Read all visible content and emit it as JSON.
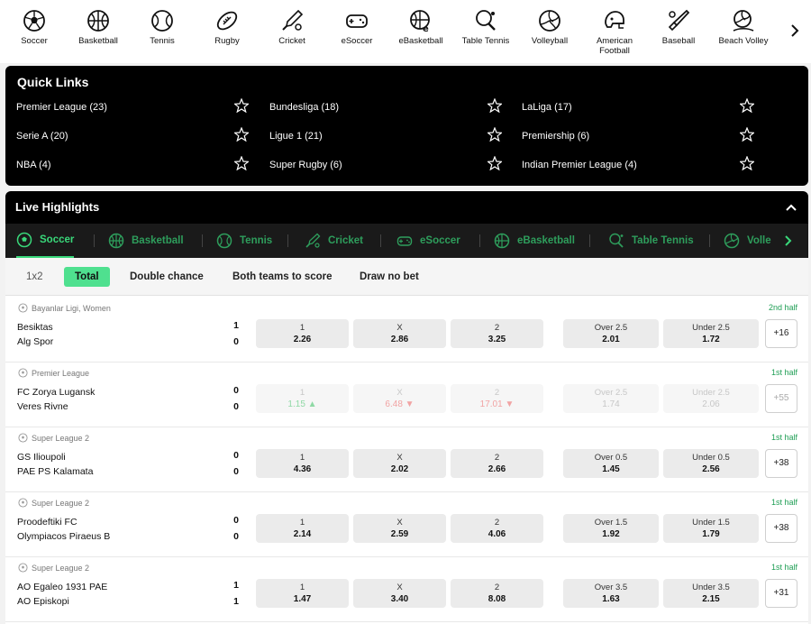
{
  "sports_bar": {
    "items": [
      {
        "label": "Soccer",
        "icon": "soccer-ball-icon"
      },
      {
        "label": "Basketball",
        "icon": "basketball-icon"
      },
      {
        "label": "Tennis",
        "icon": "tennis-ball-icon"
      },
      {
        "label": "Rugby",
        "icon": "rugby-ball-icon"
      },
      {
        "label": "Cricket",
        "icon": "cricket-bat-icon"
      },
      {
        "label": "eSoccer",
        "icon": "gamepad-icon"
      },
      {
        "label": "eBasketball",
        "icon": "ebasketball-icon"
      },
      {
        "label": "Table Tennis",
        "icon": "table-tennis-paddle-icon"
      },
      {
        "label": "Volleyball",
        "icon": "volleyball-icon"
      },
      {
        "label": "American Football",
        "icon": "football-helmet-icon"
      },
      {
        "label": "Baseball",
        "icon": "baseball-bat-icon"
      },
      {
        "label": "Beach Volley",
        "icon": "beach-volleyball-icon"
      }
    ],
    "next_icon": "chevron-right-icon"
  },
  "quick_links": {
    "title": "Quick Links",
    "items": [
      {
        "label": "Premier League (23)"
      },
      {
        "label": "Bundesliga (18)"
      },
      {
        "label": "LaLiga (17)"
      },
      {
        "label": "Serie A (20)"
      },
      {
        "label": "Ligue 1 (21)"
      },
      {
        "label": "Premiership (6)"
      },
      {
        "label": "NBA (4)"
      },
      {
        "label": "Super Rugby (6)"
      },
      {
        "label": "Indian Premier League (4)"
      }
    ]
  },
  "live": {
    "title": "Live Highlights",
    "sport_tabs": [
      "Soccer",
      "Basketball",
      "Tennis",
      "Cricket",
      "eSoccer",
      "eBasketball",
      "Table Tennis",
      "Volle"
    ],
    "market_tabs": [
      "1x2",
      "Total",
      "Double chance",
      "Both teams to score",
      "Draw no bet"
    ],
    "selected_market": "Total",
    "events": [
      {
        "league": "Bayanlar Ligi, Women",
        "period": "2nd half",
        "home": "Besiktas",
        "away": "Alg Spor",
        "home_score": "1",
        "away_score": "0",
        "odds": [
          {
            "label": "1",
            "value": "2.26"
          },
          {
            "label": "X",
            "value": "2.86"
          },
          {
            "label": "2",
            "value": "3.25"
          }
        ],
        "totals": [
          {
            "label": "Over 2.5",
            "value": "2.01"
          },
          {
            "label": "Under 2.5",
            "value": "1.72"
          }
        ],
        "more": "+16",
        "suspended": false
      },
      {
        "league": "Premier League",
        "period": "1st half",
        "home": "FC Zorya Lugansk",
        "away": "Veres Rivne",
        "home_score": "0",
        "away_score": "0",
        "odds": [
          {
            "label": "1",
            "value": "1.15",
            "trend": "up"
          },
          {
            "label": "X",
            "value": "6.48",
            "trend": "down"
          },
          {
            "label": "2",
            "value": "17.01",
            "trend": "down"
          }
        ],
        "totals": [
          {
            "label": "Over 2.5",
            "value": "1.74"
          },
          {
            "label": "Under 2.5",
            "value": "2.06"
          }
        ],
        "more": "+55",
        "suspended": true
      },
      {
        "league": "Super League 2",
        "period": "1st half",
        "home": "GS Ilioupoli",
        "away": "PAE PS Kalamata",
        "home_score": "0",
        "away_score": "0",
        "odds": [
          {
            "label": "1",
            "value": "4.36"
          },
          {
            "label": "X",
            "value": "2.02"
          },
          {
            "label": "2",
            "value": "2.66"
          }
        ],
        "totals": [
          {
            "label": "Over 0.5",
            "value": "1.45"
          },
          {
            "label": "Under 0.5",
            "value": "2.56"
          }
        ],
        "more": "+38",
        "suspended": false
      },
      {
        "league": "Super League 2",
        "period": "1st half",
        "home": "Proodeftiki FC",
        "away": "Olympiacos Piraeus B",
        "home_score": "0",
        "away_score": "0",
        "odds": [
          {
            "label": "1",
            "value": "2.14"
          },
          {
            "label": "X",
            "value": "2.59"
          },
          {
            "label": "2",
            "value": "4.06"
          }
        ],
        "totals": [
          {
            "label": "Over 1.5",
            "value": "1.92"
          },
          {
            "label": "Under 1.5",
            "value": "1.79"
          }
        ],
        "more": "+38",
        "suspended": false
      },
      {
        "league": "Super League 2",
        "period": "1st half",
        "home": "AO Egaleo 1931 PAE",
        "away": "AO Episkopi",
        "home_score": "1",
        "away_score": "1",
        "odds": [
          {
            "label": "1",
            "value": "1.47"
          },
          {
            "label": "X",
            "value": "3.40"
          },
          {
            "label": "2",
            "value": "8.08"
          }
        ],
        "totals": [
          {
            "label": "Over 3.5",
            "value": "1.63"
          },
          {
            "label": "Under 3.5",
            "value": "2.15"
          }
        ],
        "more": "+31",
        "suspended": false
      }
    ]
  },
  "colors": {
    "accent": "#39d87a",
    "selected_tab": "#4fe08f",
    "period": "#1e9e54"
  }
}
